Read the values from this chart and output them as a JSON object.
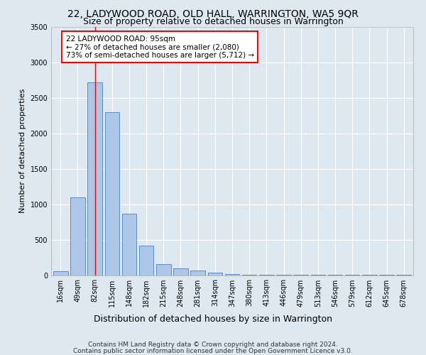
{
  "title": "22, LADYWOOD ROAD, OLD HALL, WARRINGTON, WA5 9QR",
  "subtitle": "Size of property relative to detached houses in Warrington",
  "xlabel": "Distribution of detached houses by size in Warrington",
  "ylabel": "Number of detached properties",
  "categories": [
    "16sqm",
    "49sqm",
    "82sqm",
    "115sqm",
    "148sqm",
    "182sqm",
    "215sqm",
    "248sqm",
    "281sqm",
    "314sqm",
    "347sqm",
    "380sqm",
    "413sqm",
    "446sqm",
    "479sqm",
    "513sqm",
    "546sqm",
    "579sqm",
    "612sqm",
    "645sqm",
    "678sqm"
  ],
  "values": [
    55,
    1100,
    2720,
    2300,
    870,
    420,
    160,
    100,
    65,
    40,
    20,
    10,
    5,
    5,
    5,
    2,
    2,
    2,
    1,
    1,
    1
  ],
  "bar_color": "#aec6e8",
  "bar_edge_color": "#4a7fc1",
  "red_line_index": 2,
  "annotation_text": "22 LADYWOOD ROAD: 95sqm\n← 27% of detached houses are smaller (2,080)\n73% of semi-detached houses are larger (5,712) →",
  "annotation_box_color": "white",
  "annotation_box_edge_color": "red",
  "ylim": [
    0,
    3500
  ],
  "yticks": [
    0,
    500,
    1000,
    1500,
    2000,
    2500,
    3000,
    3500
  ],
  "footer_line1": "Contains HM Land Registry data © Crown copyright and database right 2024.",
  "footer_line2": "Contains public sector information licensed under the Open Government Licence v3.0.",
  "background_color": "#dde8f0",
  "plot_bg_color": "#dde8f0",
  "title_fontsize": 10,
  "subtitle_fontsize": 9,
  "xlabel_fontsize": 9,
  "ylabel_fontsize": 8,
  "tick_fontsize": 7,
  "footer_fontsize": 6.5,
  "annotation_fontsize": 7.5
}
